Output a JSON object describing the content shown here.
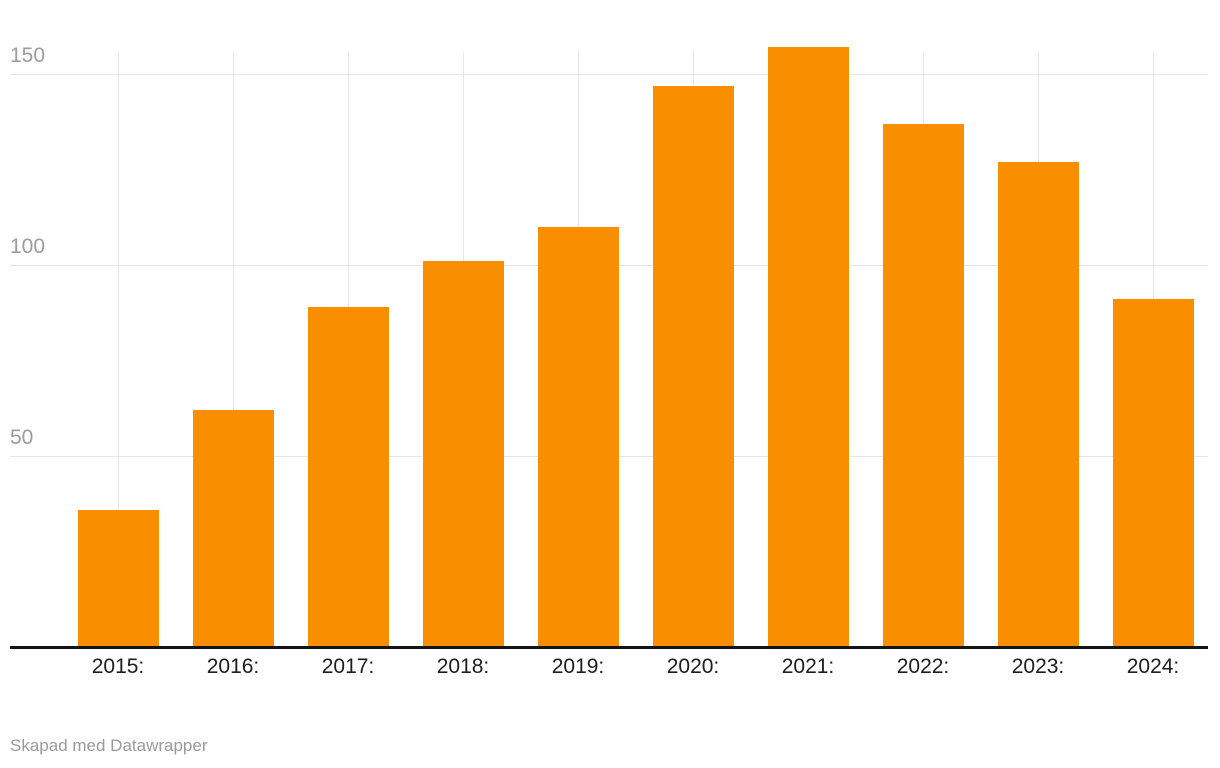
{
  "chart_data": {
    "type": "bar",
    "categories": [
      "2015:",
      "2016:",
      "2017:",
      "2018:",
      "2019:",
      "2020:",
      "2021:",
      "2022:",
      "2023:",
      "2024:"
    ],
    "values": [
      36,
      62,
      89,
      101,
      110,
      147,
      157,
      137,
      127,
      91
    ],
    "title": "",
    "xlabel": "",
    "ylabel": "",
    "ylim": [
      0,
      165
    ],
    "y_ticks": [
      50,
      100,
      150
    ],
    "grid": "on",
    "legend": "none",
    "bar_color": "#f98e00"
  },
  "colors": {
    "bar": "#f98e00",
    "gridline": "#e6e6e6",
    "y_tick_label": "#9c9c9c",
    "x_tick_label": "#1d1d1d",
    "axis_line": "#141414",
    "footer_text": "#9a9a9a"
  },
  "footer": {
    "attribution": "Skapad med Datawrapper"
  }
}
